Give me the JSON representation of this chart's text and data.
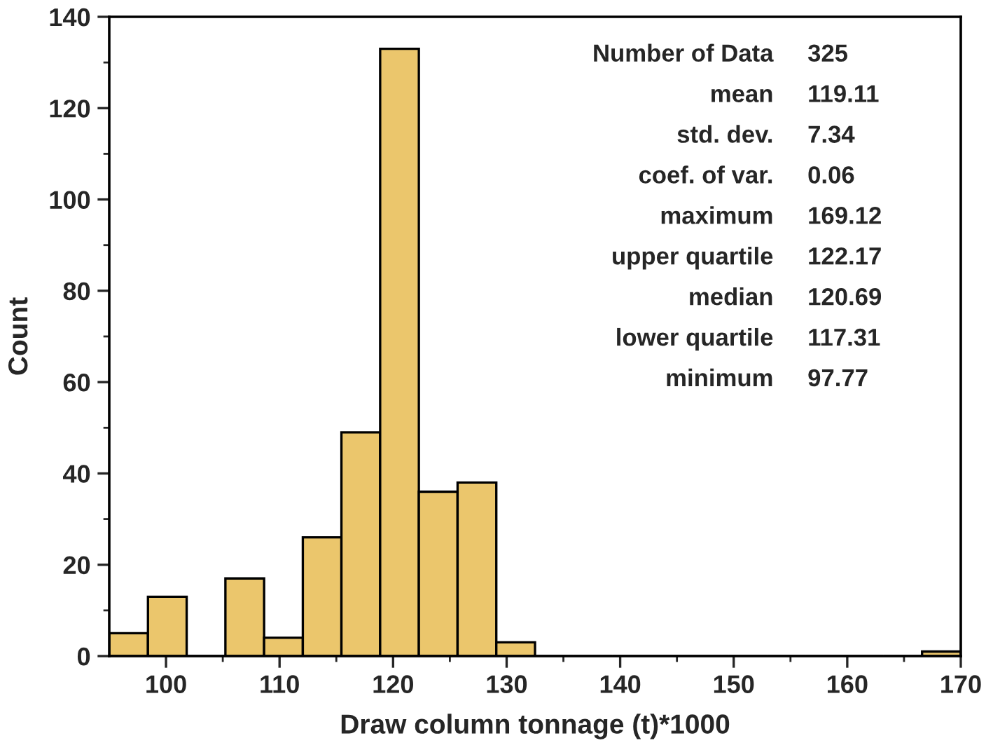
{
  "chart_data": {
    "type": "histogram",
    "xlabel": "Draw column tonnage (t)*1000",
    "ylabel": "Count",
    "color": "#ebc66c",
    "bins": [
      95,
      98.41,
      101.82,
      105.23,
      108.64,
      112.05,
      115.45,
      118.86,
      122.27,
      125.68,
      129.09,
      132.5,
      135.91,
      139.32,
      142.73,
      146.14,
      149.55,
      152.95,
      156.36,
      159.77,
      163.18,
      166.59,
      170
    ],
    "values": [
      5,
      13,
      0,
      17,
      4,
      26,
      49,
      133,
      36,
      38,
      3,
      0,
      0,
      0,
      0,
      0,
      0,
      0,
      0,
      0,
      0,
      1
    ],
    "xlim": [
      95,
      170
    ],
    "ylim": [
      0,
      140
    ],
    "xticks": [
      100,
      {
        "value": 105,
        "label": null
      },
      110,
      {
        "value": 115,
        "label": null
      },
      120,
      {
        "value": 125,
        "label": null
      },
      130,
      {
        "value": 135,
        "label": null
      },
      140,
      {
        "value": 145,
        "label": null
      },
      150,
      {
        "value": 155,
        "label": null
      },
      160,
      {
        "value": 165,
        "label": null
      },
      170
    ],
    "yticks": [
      0,
      {
        "value": 10,
        "label": null
      },
      20,
      {
        "value": 30,
        "label": null
      },
      40,
      {
        "value": 50,
        "label": null
      },
      60,
      {
        "value": 70,
        "label": null
      },
      80,
      {
        "value": 90,
        "label": null
      },
      100,
      {
        "value": 110,
        "label": null
      },
      120,
      {
        "value": 130,
        "label": null
      },
      140
    ],
    "annotations": [
      "Number of Data",
      "325",
      "mean",
      "119.11",
      "std. dev.",
      "7.34",
      "coef. of var.",
      "0.06",
      "maximum",
      "169.12",
      "upper quartile",
      "122.17",
      "median",
      "120.69",
      "lower quartile",
      "117.31",
      "minimum",
      "97.77"
    ],
    "grid": false,
    "legend": false
  }
}
